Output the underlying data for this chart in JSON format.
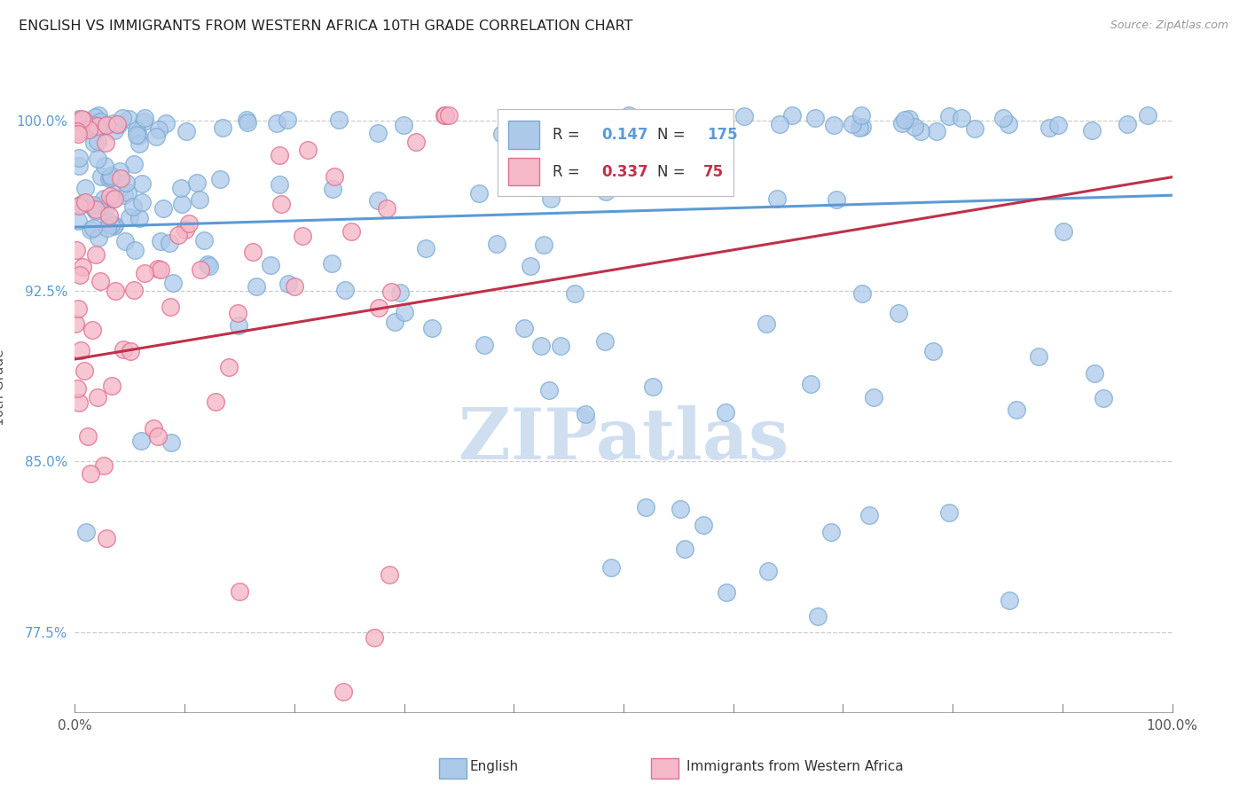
{
  "title": "ENGLISH VS IMMIGRANTS FROM WESTERN AFRICA 10TH GRADE CORRELATION CHART",
  "source_text": "Source: ZipAtlas.com",
  "ylabel": "10th Grade",
  "watermark": "ZIPatlas",
  "blue_R": 0.147,
  "blue_N": 175,
  "pink_R": 0.337,
  "pink_N": 75,
  "xlim": [
    0.0,
    1.0
  ],
  "ylim": [
    0.74,
    1.025
  ],
  "ytick_vals": [
    0.775,
    0.85,
    0.925,
    1.0
  ],
  "ytick_labels": [
    "77.5%",
    "85.0%",
    "92.5%",
    "100.0%"
  ],
  "xtick_vals": [
    0.0,
    0.1,
    0.2,
    0.3,
    0.4,
    0.5,
    0.6,
    0.7,
    0.8,
    0.9,
    1.0
  ],
  "xtick_labels": [
    "0.0%",
    "",
    "",
    "",
    "",
    "",
    "",
    "",
    "",
    "",
    "100.0%"
  ],
  "legend_label_blue": "English",
  "legend_label_pink": "Immigrants from Western Africa",
  "blue_dot_color": "#adc9ea",
  "blue_dot_edge": "#7aaad0",
  "pink_dot_color": "#f5b8c8",
  "pink_dot_edge": "#e07090",
  "blue_line_color": "#5b9bd5",
  "pink_line_color": "#c0304a",
  "background_color": "#ffffff",
  "grid_color": "#cccccc",
  "title_color": "#222222",
  "watermark_color": "#d0dff0",
  "blue_line_start_y": 0.953,
  "blue_line_end_y": 0.967,
  "pink_line_start_y": 0.895,
  "pink_line_end_x": 1.0,
  "pink_line_end_y": 0.975
}
